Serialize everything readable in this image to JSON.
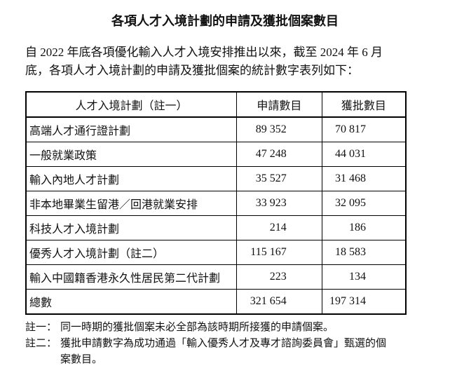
{
  "title": "各項人才入境計劃的申請及獲批個案數目",
  "intro_lines": [
    "自 2022 年底各項優化輸入人才入境安排推出以來，截至 2024 年 6 月",
    "底，各項人才入境計劃的申請及獲批個案的統計數字表列如下："
  ],
  "table": {
    "header": [
      "人才入境計劃（註一）",
      "申請數目",
      "獲批數目"
    ],
    "rows": [
      [
        "高端人才通行證計劃",
        "89 352",
        "70 817"
      ],
      [
        "一般就業政策",
        "47 248",
        "44 031"
      ],
      [
        "輸入內地人才計劃",
        "35 527",
        "31 468"
      ],
      [
        "非本地畢業生留港／回港就業安排",
        "33 923",
        "32 095"
      ],
      [
        "科技人才入境計劃",
        "214",
        "186"
      ],
      [
        "優秀人才入境計劃（註二）",
        "115 167",
        "18 583"
      ],
      [
        "輸入中國籍香港永久性居民第二代計劃",
        "223",
        "134"
      ],
      [
        "總數",
        "321 654",
        "197 314"
      ]
    ]
  },
  "notes": [
    {
      "label": "註一：",
      "lines": [
        "同一時期的獲批個案未必全部為該時期所接獲的申請個案。"
      ]
    },
    {
      "label": "註二：",
      "lines": [
        "獲批申請數字為成功通過「輸入優秀人才及專才諮詢委員會」甄選的個",
        "案數目。"
      ]
    }
  ]
}
